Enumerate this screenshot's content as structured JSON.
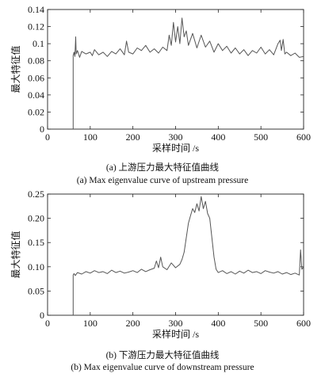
{
  "chart_data": [
    {
      "type": "line",
      "panel": "a",
      "caption_cn": "(a) 上游压力最大特征值曲线",
      "caption_en": "(a) Max eigenvalue curve of upstream pressure",
      "xlabel": "采样时间 /s",
      "ylabel": "最大特征值",
      "xlim": [
        0,
        600
      ],
      "ylim": [
        0,
        0.14
      ],
      "xticks": [
        "0",
        "100",
        "200",
        "300",
        "400",
        "500",
        "600"
      ],
      "yticks": [
        "0",
        "0.02",
        "0.04",
        "0.06",
        "0.08",
        "0.1",
        "0.12",
        "0.14"
      ],
      "line_color": "#555555",
      "series": [
        {
          "x": [
            60,
            60,
            62,
            64,
            66,
            67,
            70,
            75,
            80,
            90,
            100,
            105,
            110,
            120,
            130,
            140,
            150,
            160,
            170,
            180,
            185,
            190,
            200,
            210,
            220,
            230,
            240,
            250,
            260,
            270,
            280,
            285,
            290,
            295,
            300,
            305,
            310,
            315,
            320,
            325,
            330,
            340,
            350,
            360,
            370,
            380,
            390,
            400,
            410,
            420,
            430,
            440,
            450,
            460,
            470,
            480,
            490,
            500,
            510,
            520,
            530,
            540,
            545,
            548,
            552,
            556,
            560,
            570,
            580,
            590,
            600
          ],
          "y": [
            0,
            0.086,
            0.09,
            0.085,
            0.108,
            0.088,
            0.092,
            0.084,
            0.091,
            0.088,
            0.09,
            0.086,
            0.093,
            0.087,
            0.09,
            0.085,
            0.091,
            0.088,
            0.094,
            0.087,
            0.103,
            0.09,
            0.088,
            0.095,
            0.092,
            0.098,
            0.09,
            0.094,
            0.089,
            0.096,
            0.092,
            0.11,
            0.098,
            0.125,
            0.102,
            0.12,
            0.1,
            0.13,
            0.108,
            0.115,
            0.098,
            0.112,
            0.095,
            0.11,
            0.096,
            0.103,
            0.09,
            0.1,
            0.092,
            0.097,
            0.089,
            0.095,
            0.088,
            0.093,
            0.086,
            0.092,
            0.089,
            0.096,
            0.088,
            0.093,
            0.087,
            0.1,
            0.104,
            0.092,
            0.105,
            0.088,
            0.09,
            0.086,
            0.089,
            0.084,
            0.085
          ]
        }
      ]
    },
    {
      "type": "line",
      "panel": "b",
      "caption_cn": "(b) 下游压力最大特征值曲线",
      "caption_en": "(b) Max eigenvalue curve of downstream pressure",
      "xlabel": "采样时间 /s",
      "ylabel": "最大特征值",
      "xlim": [
        0,
        600
      ],
      "ylim": [
        0,
        0.25
      ],
      "xticks": [
        "0",
        "100",
        "200",
        "300",
        "400",
        "500",
        "600"
      ],
      "yticks": [
        "0",
        "0.05",
        "0.10",
        "0.15",
        "0.20",
        "0.25"
      ],
      "line_color": "#555555",
      "series": [
        {
          "x": [
            60,
            60,
            62,
            65,
            70,
            80,
            90,
            100,
            110,
            120,
            130,
            140,
            150,
            160,
            170,
            180,
            190,
            200,
            210,
            220,
            230,
            240,
            250,
            255,
            260,
            265,
            270,
            280,
            290,
            300,
            310,
            315,
            320,
            325,
            330,
            335,
            340,
            345,
            350,
            355,
            360,
            365,
            370,
            375,
            380,
            385,
            390,
            395,
            400,
            410,
            420,
            430,
            440,
            450,
            460,
            470,
            480,
            490,
            500,
            510,
            520,
            530,
            540,
            550,
            560,
            570,
            580,
            590,
            593,
            596,
            600
          ],
          "y": [
            0,
            0.083,
            0.086,
            0.082,
            0.088,
            0.085,
            0.09,
            0.087,
            0.092,
            0.088,
            0.09,
            0.086,
            0.093,
            0.088,
            0.091,
            0.087,
            0.089,
            0.092,
            0.088,
            0.095,
            0.09,
            0.094,
            0.097,
            0.112,
            0.098,
            0.12,
            0.1,
            0.094,
            0.108,
            0.098,
            0.105,
            0.115,
            0.13,
            0.16,
            0.19,
            0.205,
            0.22,
            0.212,
            0.23,
            0.215,
            0.245,
            0.22,
            0.235,
            0.21,
            0.2,
            0.16,
            0.12,
            0.095,
            0.088,
            0.092,
            0.086,
            0.09,
            0.085,
            0.091,
            0.087,
            0.093,
            0.088,
            0.09,
            0.086,
            0.092,
            0.089,
            0.087,
            0.09,
            0.085,
            0.088,
            0.084,
            0.087,
            0.083,
            0.135,
            0.095,
            0.1
          ]
        }
      ]
    }
  ]
}
